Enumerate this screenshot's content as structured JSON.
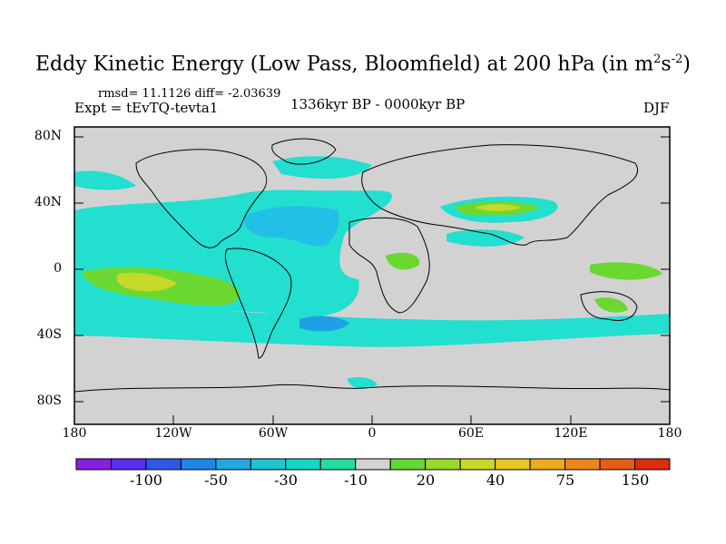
{
  "title": {
    "main": "Eddy Kinetic Energy (Low Pass, Bloomfield) at 200 hPa (in m",
    "exp1": "2",
    "mid": "s",
    "exp2": "-2",
    "close": ")"
  },
  "stats": {
    "rmsd_line": "rmsd= 11.1126 diff= -2.03639"
  },
  "experiment": "Expt = tEvTQ-tevta1",
  "period": "1336kyr BP - 0000kyr BP",
  "season": "DJF",
  "y_axis_labels": [
    "80N",
    "40N",
    "0",
    "40S",
    "80S"
  ],
  "x_axis_labels": [
    "180",
    "120W",
    "60W",
    "0",
    "60E",
    "120E",
    "180"
  ],
  "colorbar": {
    "labels": [
      "-100",
      "-50",
      "-30",
      "-10",
      "20",
      "40",
      "75",
      "150"
    ],
    "colors": [
      "#8a1fe0",
      "#5a2df0",
      "#2f59e8",
      "#1f86e6",
      "#20a8df",
      "#1cc4d6",
      "#14d6c4",
      "#22dca2",
      "#d2d2d2",
      "#64d832",
      "#9ad82a",
      "#c8d828",
      "#e6c81e",
      "#ecaa1c",
      "#ec861a",
      "#e65e14",
      "#dc2e0c"
    ]
  },
  "map": {
    "background_color": "#d2d2d2",
    "cyan": "#22dfd0",
    "light_blue": "#22bfe6",
    "blue": "#1fa0e6",
    "green": "#6bd832",
    "yellow": "#c6d828",
    "coast": "#000000"
  }
}
